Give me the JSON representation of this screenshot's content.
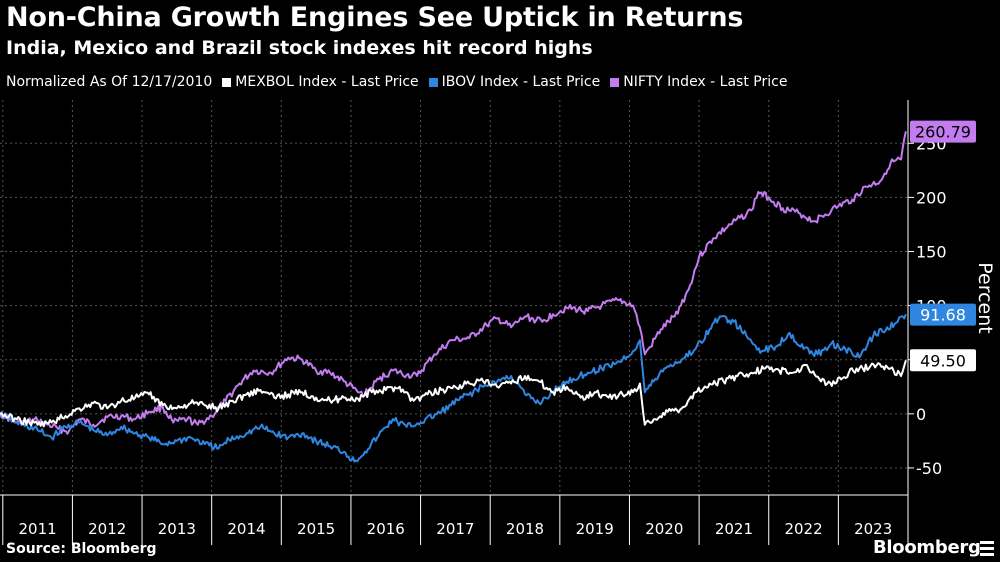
{
  "title": "Non-China Growth Engines See Uptick in Returns",
  "subtitle": "India, Mexico and Brazil stock indexes hit record highs",
  "legend": {
    "note": "Normalized As Of 12/17/2010",
    "items": [
      {
        "label": "MEXBOL Index - Last Price",
        "color": "#ffffff"
      },
      {
        "label": "IBOV Index - Last Price",
        "color": "#2f86e0"
      },
      {
        "label": "NIFTY Index - Last Price",
        "color": "#c37cf0"
      }
    ]
  },
  "source": "Source: Bloomberg",
  "brand": "Bloomberg",
  "chart_data": {
    "type": "line",
    "ylabel": "Percent",
    "xlabel": "",
    "ylim": [
      -75,
      290
    ],
    "yticks": [
      -50,
      0,
      50,
      100,
      150,
      200,
      250
    ],
    "xlim": [
      2010.96,
      2024.0
    ],
    "year_labels": [
      "2011",
      "2012",
      "2013",
      "2014",
      "2015",
      "2016",
      "2017",
      "2018",
      "2019",
      "2020",
      "2021",
      "2022",
      "2023"
    ],
    "grid": true,
    "series": [
      {
        "name": "NIFTY Index - Last Price",
        "color": "#c37cf0",
        "last_label": "260.79",
        "last_value": 260.79,
        "x": [
          2010.96,
          2011.2,
          2011.5,
          2011.8,
          2011.95,
          2012.1,
          2012.3,
          2012.5,
          2012.7,
          2012.9,
          2013.1,
          2013.3,
          2013.45,
          2013.65,
          2013.8,
          2014.0,
          2014.2,
          2014.4,
          2014.6,
          2014.85,
          2015.1,
          2015.3,
          2015.5,
          2015.7,
          2015.9,
          2016.1,
          2016.2,
          2016.4,
          2016.6,
          2016.8,
          2016.95,
          2017.2,
          2017.45,
          2017.7,
          2017.95,
          2018.1,
          2018.3,
          2018.5,
          2018.75,
          2018.9,
          2019.1,
          2019.4,
          2019.6,
          2019.85,
          2020.05,
          2020.15,
          2020.22,
          2020.3,
          2020.45,
          2020.65,
          2020.85,
          2021.0,
          2021.2,
          2021.45,
          2021.75,
          2021.85,
          2022.0,
          2022.2,
          2022.45,
          2022.65,
          2022.9,
          2023.0,
          2023.2,
          2023.4,
          2023.6,
          2023.75,
          2023.9,
          2023.97
        ],
        "y": [
          0,
          -8,
          -6,
          -14,
          -16,
          -5,
          -10,
          -3,
          -2,
          -5,
          2,
          6,
          -8,
          -5,
          -10,
          -2,
          12,
          28,
          40,
          38,
          52,
          50,
          40,
          38,
          30,
          20,
          18,
          32,
          40,
          36,
          35,
          55,
          68,
          70,
          82,
          88,
          80,
          90,
          85,
          92,
          98,
          95,
          100,
          105,
          100,
          80,
          55,
          62,
          78,
          90,
          115,
          145,
          162,
          175,
          188,
          205,
          200,
          190,
          185,
          178,
          188,
          192,
          198,
          210,
          215,
          232,
          235,
          261
        ]
      },
      {
        "name": "IBOV Index - Last Price",
        "color": "#2f86e0",
        "last_label": "91.68",
        "last_value": 91.68,
        "x": [
          2010.96,
          2011.2,
          2011.5,
          2011.7,
          2011.9,
          2012.1,
          2012.3,
          2012.5,
          2012.7,
          2012.9,
          2013.1,
          2013.3,
          2013.5,
          2013.7,
          2013.9,
          2014.1,
          2014.25,
          2014.5,
          2014.7,
          2014.9,
          2015.1,
          2015.3,
          2015.5,
          2015.7,
          2015.9,
          2016.05,
          2016.2,
          2016.4,
          2016.6,
          2016.8,
          2017.0,
          2017.3,
          2017.6,
          2017.9,
          2018.1,
          2018.3,
          2018.5,
          2018.7,
          2018.9,
          2019.1,
          2019.4,
          2019.6,
          2019.9,
          2020.05,
          2020.15,
          2020.22,
          2020.35,
          2020.5,
          2020.75,
          2020.95,
          2021.15,
          2021.3,
          2021.5,
          2021.7,
          2021.9,
          2022.1,
          2022.3,
          2022.5,
          2022.7,
          2022.9,
          2023.1,
          2023.3,
          2023.5,
          2023.7,
          2023.85,
          2023.97
        ],
        "y": [
          0,
          -8,
          -15,
          -22,
          -12,
          -8,
          -15,
          -20,
          -12,
          -18,
          -22,
          -28,
          -25,
          -22,
          -28,
          -32,
          -24,
          -18,
          -12,
          -18,
          -22,
          -18,
          -25,
          -30,
          -35,
          -44,
          -35,
          -20,
          -5,
          -12,
          -8,
          2,
          15,
          25,
          30,
          35,
          18,
          10,
          20,
          30,
          38,
          42,
          50,
          58,
          68,
          20,
          30,
          42,
          50,
          60,
          78,
          90,
          85,
          70,
          58,
          62,
          75,
          60,
          55,
          65,
          60,
          52,
          72,
          80,
          85,
          92
        ]
      },
      {
        "name": "MEXBOL Index - Last Price",
        "color": "#ffffff",
        "last_label": "49.50",
        "last_value": 49.5,
        "x": [
          2010.96,
          2011.2,
          2011.5,
          2011.7,
          2011.9,
          2012.1,
          2012.3,
          2012.5,
          2012.7,
          2012.9,
          2013.1,
          2013.3,
          2013.5,
          2013.7,
          2013.9,
          2014.1,
          2014.3,
          2014.5,
          2014.7,
          2014.9,
          2015.1,
          2015.3,
          2015.5,
          2015.7,
          2015.9,
          2016.1,
          2016.3,
          2016.5,
          2016.7,
          2016.9,
          2017.1,
          2017.3,
          2017.5,
          2017.7,
          2017.9,
          2018.1,
          2018.3,
          2018.5,
          2018.7,
          2018.9,
          2019.1,
          2019.3,
          2019.5,
          2019.7,
          2019.9,
          2020.05,
          2020.15,
          2020.22,
          2020.35,
          2020.55,
          2020.75,
          2020.95,
          2021.15,
          2021.35,
          2021.55,
          2021.75,
          2021.95,
          2022.15,
          2022.35,
          2022.55,
          2022.75,
          2022.95,
          2023.15,
          2023.35,
          2023.55,
          2023.75,
          2023.9,
          2023.97
        ],
        "y": [
          0,
          -5,
          -10,
          -8,
          -2,
          5,
          10,
          5,
          12,
          15,
          18,
          8,
          5,
          10,
          8,
          5,
          12,
          18,
          22,
          15,
          18,
          20,
          15,
          12,
          15,
          14,
          20,
          22,
          25,
          12,
          18,
          22,
          25,
          28,
          30,
          25,
          28,
          35,
          30,
          20,
          25,
          15,
          20,
          15,
          18,
          20,
          28,
          -10,
          -5,
          2,
          5,
          20,
          28,
          30,
          35,
          38,
          42,
          40,
          38,
          45,
          30,
          28,
          38,
          42,
          45,
          42,
          35,
          49.5
        ]
      }
    ]
  }
}
